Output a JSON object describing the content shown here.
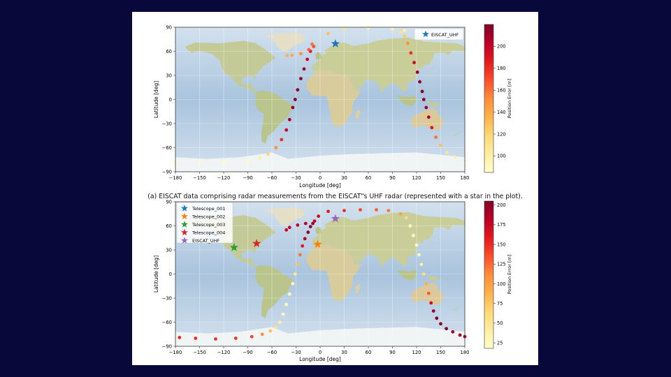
{
  "caption": "(a) EISCAT data comprising radar measurements from the EISCAT\"s UHF radar (represented with a star in the plot).",
  "colormap": [
    "#ffffcc",
    "#ffeda0",
    "#fed976",
    "#feb24c",
    "#fd8d3c",
    "#fc4e2a",
    "#e31a1c",
    "#bd0026",
    "#800026"
  ],
  "marker_colors": {
    "Telescope_001": "#1f77b4",
    "Telescope_002": "#ff7f0e",
    "Telescope_003": "#2ca02c",
    "Telescope_004": "#d62728",
    "EISCAT_UHF_top": "#1f77b4",
    "EISCAT_UHF_bottom": "#9467bd"
  },
  "chart_data": [
    {
      "type": "scatter",
      "xlabel": "Longitude [deg]",
      "ylabel": "Latitude [deg]",
      "xlim": [
        -180,
        180
      ],
      "ylim": [
        -90,
        90
      ],
      "xticks": [
        -180,
        -150,
        -120,
        -90,
        -60,
        -30,
        0,
        30,
        60,
        90,
        120,
        150,
        180
      ],
      "yticks": [
        -90,
        -60,
        -30,
        0,
        30,
        60,
        90
      ],
      "grid": true,
      "background": "world map",
      "colorbar": {
        "label": "Position Error [m]",
        "range": [
          85,
          220
        ],
        "ticks": [
          100,
          120,
          140,
          160,
          180,
          200
        ]
      },
      "legend": {
        "placement": "top-right",
        "entries": [
          "EISCAT_UHF"
        ]
      },
      "stations": [
        {
          "name": "EISCAT_UHF",
          "lon": 19,
          "lat": 69.5
        }
      ],
      "tracks": [
        {
          "points": [
            [
              -180,
              -78,
              88
            ],
            [
              -150,
              -79,
              89
            ],
            [
              -120,
              -78,
              90
            ],
            [
              -90,
              -76,
              92
            ],
            [
              -75,
              -73,
              100
            ],
            [
              -65,
              -68,
              120
            ],
            [
              -55,
              -60,
              150
            ],
            [
              -48,
              -50,
              180
            ],
            [
              -42,
              -38,
              200
            ],
            [
              -38,
              -25,
              210
            ],
            [
              -34,
              -10,
              215
            ],
            [
              -31,
              0,
              218
            ],
            [
              -28,
              12,
              218
            ],
            [
              -24,
              26,
              215
            ],
            [
              -20,
              38,
              210
            ],
            [
              -16,
              50,
              200
            ],
            [
              -12,
              60,
              185
            ],
            [
              -8,
              66,
              170
            ],
            [
              -14,
              62,
              165
            ],
            [
              -24,
              57,
              150
            ],
            [
              -35,
              55,
              140
            ],
            [
              -41,
              55,
              135
            ],
            [
              -10,
              69,
              160
            ],
            [
              10,
              82,
              130
            ],
            [
              30,
              88,
              110
            ],
            [
              60,
              89,
              100
            ],
            [
              90,
              88,
              96
            ],
            [
              105,
              86,
              100
            ]
          ]
        },
        {
          "points": [
            [
              90,
              88,
              98
            ],
            [
              100,
              84,
              110
            ],
            [
              105,
              79,
              125
            ],
            [
              109,
              70,
              150
            ],
            [
              113,
              58,
              180
            ],
            [
              117,
              46,
              200
            ],
            [
              121,
              34,
              212
            ],
            [
              124,
              22,
              217
            ],
            [
              127,
              10,
              218
            ],
            [
              129,
              0,
              216
            ],
            [
              132,
              -10,
              212
            ],
            [
              135,
              -22,
              205
            ],
            [
              139,
              -35,
              190
            ],
            [
              144,
              -47,
              160
            ],
            [
              150,
              -57,
              130
            ],
            [
              158,
              -66,
              110
            ],
            [
              168,
              -72,
              98
            ],
            [
              180,
              -76,
              92
            ]
          ]
        }
      ]
    },
    {
      "type": "scatter",
      "xlabel": "Longitude [deg]",
      "ylabel": "Latitude [deg]",
      "xlim": [
        -180,
        180
      ],
      "ylim": [
        -90,
        90
      ],
      "xticks": [
        -180,
        -150,
        -120,
        -90,
        -60,
        -30,
        0,
        30,
        60,
        90,
        120,
        150,
        180
      ],
      "yticks": [
        -90,
        -60,
        -30,
        0,
        30,
        60,
        90
      ],
      "grid": true,
      "background": "world map",
      "colorbar": {
        "label": "Position Error [m]",
        "range": [
          18,
          205
        ],
        "ticks": [
          25,
          50,
          75,
          100,
          125,
          150,
          175,
          200
        ]
      },
      "legend": {
        "placement": "top-left",
        "entries": [
          "Telescope_001",
          "Telescope_002",
          "Telescope_003",
          "Telescope_004",
          "EISCAT_UHF"
        ]
      },
      "stations": [
        {
          "name": "Telescope_001",
          "lon": -170,
          "lat": 83
        },
        {
          "name": "Telescope_002",
          "lon": -3,
          "lat": 37
        },
        {
          "name": "Telescope_003",
          "lon": -107,
          "lat": 33
        },
        {
          "name": "Telescope_004",
          "lon": -79,
          "lat": 38
        },
        {
          "name": "EISCAT_UHF",
          "lon": 19,
          "lat": 69
        }
      ],
      "tracks": [
        {
          "points": [
            [
              -175,
              -79,
              150
            ],
            [
              -155,
              -80,
              150
            ],
            [
              -130,
              -81,
              148
            ],
            [
              -105,
              -80,
              145
            ],
            [
              -85,
              -78,
              140
            ],
            [
              -72,
              -75,
              110
            ],
            [
              -62,
              -71,
              80
            ],
            [
              -55,
              -66,
              55
            ],
            [
              -50,
              -60,
              40
            ],
            [
              -46,
              -50,
              30
            ],
            [
              -42,
              -38,
              26
            ],
            [
              -38,
              -25,
              25
            ],
            [
              -34,
              -12,
              30
            ],
            [
              -31,
              0,
              50
            ],
            [
              -28,
              12,
              80
            ],
            [
              -25,
              24,
              120
            ],
            [
              -22,
              35,
              160
            ],
            [
              -19,
              44,
              185
            ],
            [
              -15,
              52,
              200
            ],
            [
              -12,
              59,
              200
            ],
            [
              -9,
              63,
              195
            ],
            [
              -18,
              63,
              185
            ],
            [
              -28,
              61,
              180
            ],
            [
              -38,
              58,
              178
            ],
            [
              -42,
              55,
              178
            ]
          ]
        },
        {
          "points": [
            [
              -7,
              66,
              180
            ],
            [
              -2,
              72,
              170
            ],
            [
              10,
              78,
              160
            ],
            [
              30,
              79,
              150
            ],
            [
              50,
              80,
              140
            ],
            [
              70,
              80,
              130
            ],
            [
              85,
              79,
              120
            ],
            [
              100,
              75,
              100
            ],
            [
              107,
              70,
              60
            ],
            [
              112,
              60,
              30
            ],
            [
              116,
              48,
              22
            ],
            [
              120,
              36,
              22
            ],
            [
              123,
              24,
              28
            ],
            [
              126,
              12,
              40
            ],
            [
              129,
              0,
              60
            ],
            [
              132,
              -12,
              90
            ],
            [
              135,
              -24,
              130
            ],
            [
              138,
              -36,
              170
            ],
            [
              141,
              -46,
              195
            ],
            [
              145,
              -55,
              205
            ],
            [
              150,
              -62,
              205
            ],
            [
              157,
              -68,
              200
            ],
            [
              165,
              -72,
              195
            ],
            [
              174,
              -76,
              190
            ],
            [
              180,
              -78,
              188
            ]
          ]
        }
      ]
    }
  ]
}
